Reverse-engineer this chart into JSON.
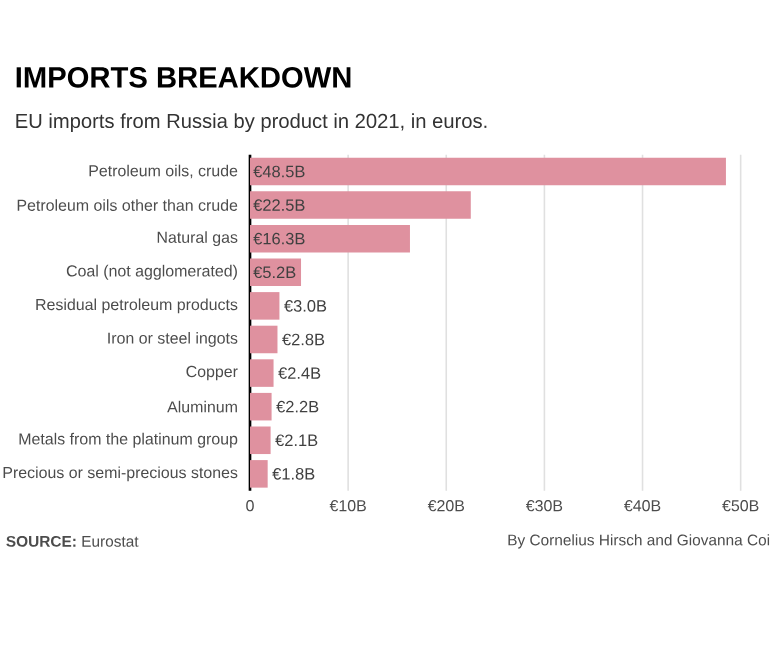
{
  "chart_data": {
    "type": "bar",
    "orientation": "horizontal",
    "title": "IMPORTS BREAKDOWN",
    "subtitle": "EU imports from Russia by product in 2021, in euros.",
    "categories": [
      "Petroleum oils, crude",
      "Petroleum oils other than crude",
      "Natural gas",
      "Coal (not agglomerated)",
      "Residual petroleum products",
      "Iron or steel ingots",
      "Copper",
      "Aluminum",
      "Metals from the platinum group",
      "Precious or semi-precious stones"
    ],
    "values": [
      48.5,
      22.5,
      16.3,
      5.2,
      3.0,
      2.8,
      2.4,
      2.2,
      2.1,
      1.8
    ],
    "value_labels": [
      "€48.5B",
      "€22.5B",
      "€16.3B",
      "€5.2B",
      "€3.0B",
      "€2.8B",
      "€2.4B",
      "€2.2B",
      "€2.1B",
      "€1.8B"
    ],
    "color": "#df919f",
    "xlim": [
      0,
      50
    ],
    "xticks": [
      0,
      {
        "value": 10,
        "label": "€10B"
      },
      {
        "value": 20,
        "label": "€20B"
      },
      {
        "value": 30,
        "label": "€30B"
      },
      {
        "value": 40,
        "label": "€40B"
      },
      {
        "value": 50,
        "label": "€50B"
      }
    ],
    "grid": "x",
    "annotations": [
      "**SOURCE:** Eurostat",
      "By Cornelius Hirsch and Giovanna Coi"
    ]
  }
}
